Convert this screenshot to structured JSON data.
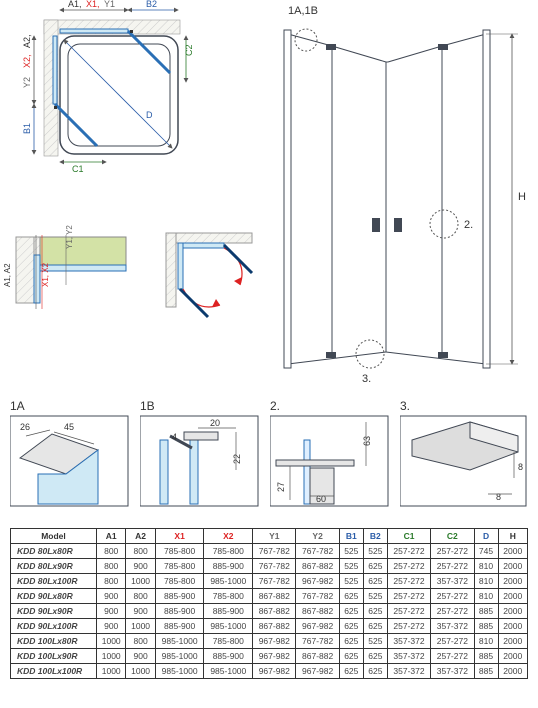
{
  "colors": {
    "outline": "#414854",
    "glassFill": "#cfe9f5",
    "glassStroke": "#2a6fb5",
    "greenFill": "#d3e2a6",
    "red": "#d22",
    "blue": "#2a5ca8",
    "darkBlue": "#0b3a6d",
    "green": "#2a7a2a",
    "gray": "#777",
    "hatchBg": "#f5f5f0"
  },
  "topPlan": {
    "labels": {
      "A1": "A1,",
      "X1": "X1,",
      "Y1": "Y1",
      "B2": "B2",
      "A2": "A2,",
      "X2": "X2,",
      "Y2": "Y2",
      "B1": "B1",
      "D": "D",
      "C1": "C1",
      "C2": "C2"
    }
  },
  "perspective": {
    "labels": {
      "top": "1A,1B",
      "det2": "2.",
      "det3": "3.",
      "H": "H"
    }
  },
  "details": {
    "d1A": {
      "title": "1A",
      "dim26": "26",
      "dim45": "45"
    },
    "d1B": {
      "title": "1B",
      "dim20": "20",
      "dim4": "4",
      "dim22": "22"
    },
    "d2": {
      "title": "2.",
      "dim63": "63",
      "dim27": "27",
      "dim60": "60"
    },
    "d3": {
      "title": "3.",
      "dim8h": "8",
      "dim8v": "8"
    }
  },
  "table": {
    "headers": [
      "Model",
      "A1",
      "A2",
      "X1",
      "X2",
      "Y1",
      "Y2",
      "B1",
      "B2",
      "C1",
      "C2",
      "D",
      "H"
    ],
    "headerColors": [
      "#333",
      "#333",
      "#333",
      "#d22",
      "#d22",
      "#666",
      "#666",
      "#2a5ca8",
      "#2a5ca8",
      "#2a7a2a",
      "#2a7a2a",
      "#2a5ca8",
      "#333"
    ],
    "rows": [
      [
        "KDD 80Lx80R",
        "800",
        "800",
        "785-800",
        "785-800",
        "767-782",
        "767-782",
        "525",
        "525",
        "257-272",
        "257-272",
        "745",
        "2000"
      ],
      [
        "KDD 80Lx90R",
        "800",
        "900",
        "785-800",
        "885-900",
        "767-782",
        "867-882",
        "525",
        "625",
        "257-272",
        "257-272",
        "810",
        "2000"
      ],
      [
        "KDD 80Lx100R",
        "800",
        "1000",
        "785-800",
        "985-1000",
        "767-782",
        "967-982",
        "525",
        "625",
        "257-272",
        "357-372",
        "810",
        "2000"
      ],
      [
        "KDD 90Lx80R",
        "900",
        "800",
        "885-900",
        "785-800",
        "867-882",
        "767-782",
        "625",
        "525",
        "257-272",
        "257-272",
        "810",
        "2000"
      ],
      [
        "KDD 90Lx90R",
        "900",
        "900",
        "885-900",
        "885-900",
        "867-882",
        "867-882",
        "625",
        "625",
        "257-272",
        "257-272",
        "885",
        "2000"
      ],
      [
        "KDD 90Lx100R",
        "900",
        "1000",
        "885-900",
        "985-1000",
        "867-882",
        "967-982",
        "625",
        "625",
        "257-272",
        "357-372",
        "885",
        "2000"
      ],
      [
        "KDD 100Lx80R",
        "1000",
        "800",
        "985-1000",
        "785-800",
        "967-982",
        "767-782",
        "625",
        "525",
        "357-372",
        "257-272",
        "810",
        "2000"
      ],
      [
        "KDD 100Lx90R",
        "1000",
        "900",
        "985-1000",
        "885-900",
        "967-982",
        "867-882",
        "625",
        "625",
        "357-372",
        "257-272",
        "885",
        "2000"
      ],
      [
        "KDD 100Lx100R",
        "1000",
        "1000",
        "985-1000",
        "985-1000",
        "967-982",
        "967-982",
        "625",
        "625",
        "357-372",
        "357-372",
        "885",
        "2000"
      ]
    ]
  }
}
